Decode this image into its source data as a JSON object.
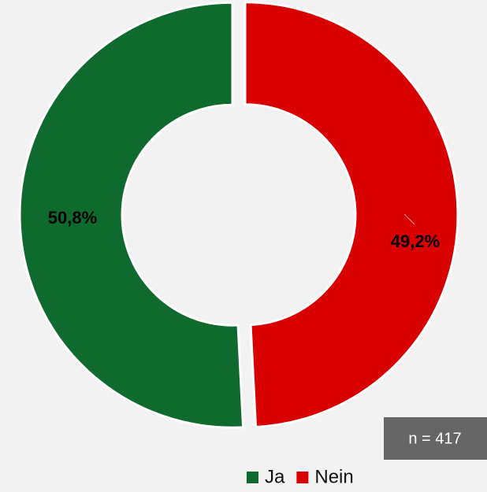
{
  "chart_data": {
    "type": "donut",
    "categories": [
      "Ja",
      "Nein"
    ],
    "values": [
      50.8,
      49.2
    ],
    "value_labels": [
      "50,8%",
      "49,2%"
    ],
    "colors": [
      "#0f6b2d",
      "#d90000"
    ],
    "annotation": "n = 417"
  }
}
